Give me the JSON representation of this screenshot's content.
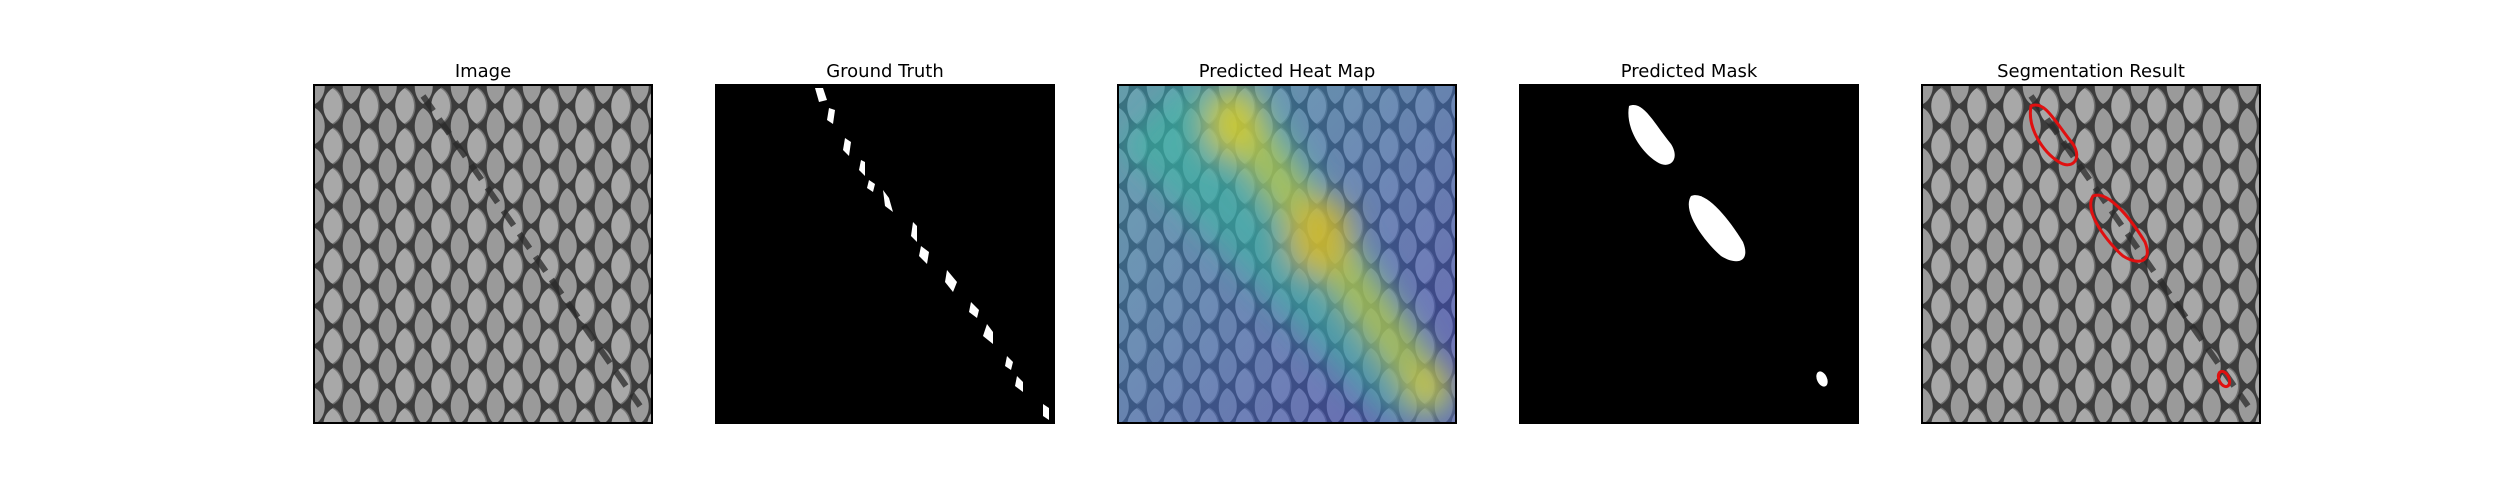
{
  "figure": {
    "panels": [
      {
        "id": "image",
        "title": "Image"
      },
      {
        "id": "ground-truth",
        "title": "Ground Truth"
      },
      {
        "id": "heat-map",
        "title": "Predicted Heat Map"
      },
      {
        "id": "mask",
        "title": "Predicted Mask"
      },
      {
        "id": "segmentation",
        "title": "Segmentation Result"
      }
    ],
    "colors": {
      "texture_dark": "#3c3c3c",
      "texture_cell": "#a8a8a8",
      "mask_fg": "#ffffff",
      "mask_bg": "#000000",
      "heat_low": "#4040c8",
      "heat_high": "#d8d020",
      "contour": "#e01010"
    }
  }
}
